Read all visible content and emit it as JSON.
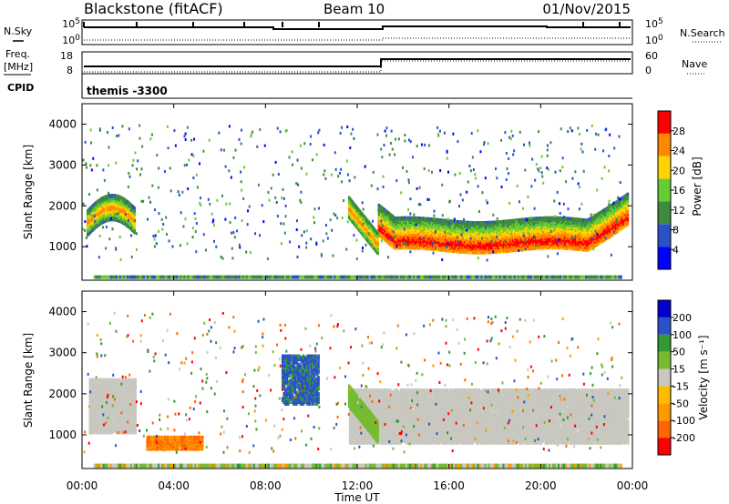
{
  "header": {
    "station": "Blackstone (fitACF)",
    "beam": "Beam 10",
    "date": "01/Nov/2015"
  },
  "status_panel": {
    "left_labels": [
      "N.Sky",
      "Freq.",
      "[MHz]",
      "CPID"
    ],
    "right_labels": [
      "N.Search",
      "Nave"
    ],
    "nsky_ticks": [
      "10^5",
      "10^0"
    ],
    "nsearch_ticks": [
      "10^5",
      "10^0"
    ],
    "freq_ticks": [
      "18",
      "8"
    ],
    "nave_ticks": [
      "60",
      "0"
    ],
    "cpid_text": "themis -3300"
  },
  "chart_data": [
    {
      "type": "heatmap",
      "title": "",
      "ylabel": "Slant Range [km]",
      "xlabel": "",
      "ylim": [
        180,
        4500
      ],
      "yticks": [
        1000,
        2000,
        3000,
        4000
      ],
      "xlim": [
        0,
        24
      ],
      "xticks": [
        "00:00",
        "04:00",
        "08:00",
        "12:00",
        "16:00",
        "20:00",
        "00:00"
      ],
      "colorbar": {
        "label": "Power [dB]",
        "ticks": [
          "28",
          "24",
          "20",
          "16",
          "12",
          "8",
          "4"
        ],
        "colors": [
          "#0000ff",
          "#2a52c8",
          "#3f8a3f",
          "#66cc33",
          "#ffd400",
          "#ff8800",
          "#ff0000"
        ]
      },
      "features": [
        {
          "desc": "main echo band",
          "t_start": 12.9,
          "t_end": 23.8,
          "range_km": 1050,
          "power_db": 28
        },
        {
          "desc": "early echo",
          "t_start": 0.2,
          "t_end": 2.3,
          "range_km": 1800,
          "power_db": 24
        },
        {
          "desc": "descending echo",
          "t_start": 11.6,
          "t_end": 12.9,
          "range_km": 1400,
          "power_db": 24
        }
      ]
    },
    {
      "type": "heatmap",
      "title": "",
      "ylabel": "Slant Range [km]",
      "xlabel": "Time UT",
      "ylim": [
        180,
        4500
      ],
      "yticks": [
        1000,
        2000,
        3000,
        4000
      ],
      "xlim": [
        0,
        24
      ],
      "xticks": [
        "00:00",
        "04:00",
        "08:00",
        "12:00",
        "16:00",
        "20:00",
        "00:00"
      ],
      "colorbar": {
        "label": "Velocity [m s⁻¹]",
        "ticks": [
          "200",
          "100",
          "50",
          "15",
          "-15",
          "-50",
          "-100",
          "-200"
        ],
        "colors": [
          "#ff0000",
          "#ff6600",
          "#ff9900",
          "#ffbb00",
          "#c8c8c0",
          "#77bb33",
          "#339933",
          "#2a52c8",
          "#0000cc"
        ]
      },
      "features": [
        {
          "desc": "ground scatter band",
          "t_start": 12.9,
          "t_end": 23.8,
          "range_km": 1200,
          "velocity": 0
        },
        {
          "desc": "negative velocity patch",
          "t_start": 2.8,
          "t_end": 5.2,
          "range_km": 850,
          "velocity": -60
        },
        {
          "desc": "positive velocity patch",
          "t_start": 8.7,
          "t_end": 10.3,
          "range_km": 2400,
          "velocity": 120
        }
      ]
    }
  ]
}
